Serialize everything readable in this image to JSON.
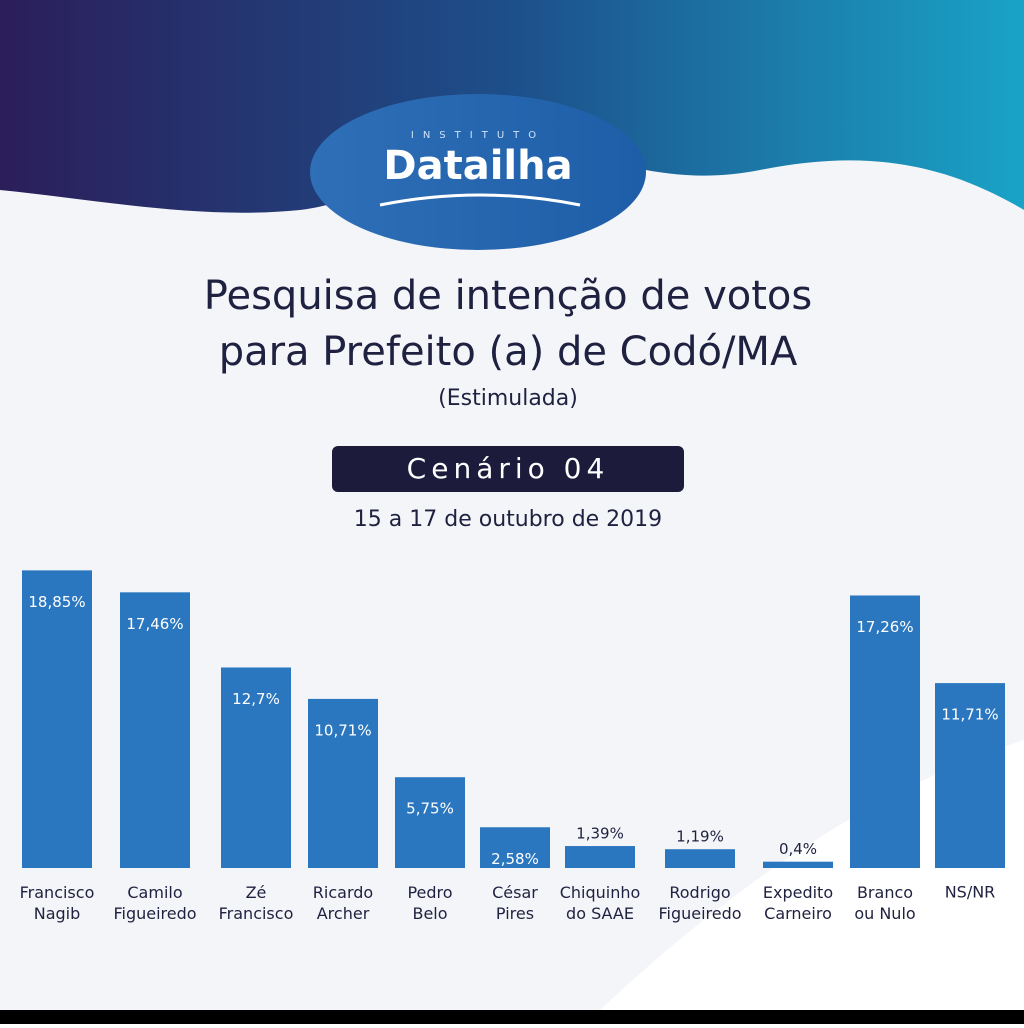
{
  "header": {
    "institute": "INSTITUTO",
    "brand": "Datailha"
  },
  "chart_data": {
    "type": "bar",
    "title": [
      "Pesquisa de intenção de votos",
      "para Prefeito (a) de Codó/MA"
    ],
    "subtitle": "(Estimulada)",
    "scenario": "Cenário 04",
    "date": "15 a 17 de outubro de 2019",
    "categories": [
      "Francisco\nNagib",
      "Camilo\nFigueiredo",
      "Zé\nFrancisco",
      "Ricardo\nArcher",
      "Pedro\nBelo",
      "César\nPires",
      "Chiquinho\ndo SAAE",
      "Rodrigo\nFigueiredo",
      "Expedito\nCarneiro",
      "Branco\nou Nulo",
      "NS/NR"
    ],
    "values": [
      18.85,
      17.46,
      12.7,
      10.71,
      5.75,
      2.58,
      1.39,
      1.19,
      0.4,
      17.26,
      11.71
    ],
    "value_labels": [
      "18,85%",
      "17,46%",
      "12,7%",
      "10,71%",
      "5,75%",
      "2,58%",
      "1,39%",
      "1,19%",
      "0,4%",
      "17,26%",
      "11,71%"
    ],
    "color": "#2a77c0",
    "ylim": [
      0,
      19
    ]
  }
}
